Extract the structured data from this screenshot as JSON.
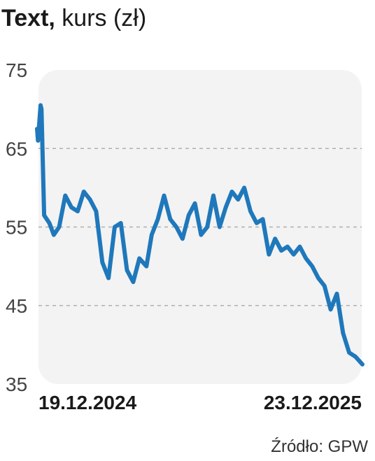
{
  "title": {
    "bold": "Text",
    "light": " kurs (zł)",
    "comma": ","
  },
  "source": "Źródło: GPW",
  "colors": {
    "line": "#1f78bb",
    "panel": "#f3f3f3",
    "grid": "#b0b0b0",
    "text": "#1a1a1a"
  },
  "chart_data": {
    "type": "line",
    "title": "Text, kurs (zł)",
    "ylabel": "kurs (zł)",
    "ylim": [
      35,
      75
    ],
    "yticks": [
      35,
      45,
      55,
      65,
      75
    ],
    "xtick_labels": [
      "19.12.2024",
      "23.12.2025"
    ],
    "grid": "horizontal dashed",
    "series": [
      {
        "x": [
          "2024-12-19",
          "2024-12-20",
          "2024-12-23",
          "2024-12-24",
          "2024-12-27",
          "2025-01-02",
          "2025-01-07",
          "2025-01-13",
          "2025-01-20",
          "2025-01-27",
          "2025-02-03",
          "2025-02-10",
          "2025-02-17",
          "2025-02-24",
          "2025-03-03",
          "2025-03-10",
          "2025-03-17",
          "2025-03-24",
          "2025-03-31",
          "2025-04-07",
          "2025-04-14",
          "2025-04-22",
          "2025-04-28",
          "2025-05-05",
          "2025-05-12",
          "2025-05-19",
          "2025-05-26",
          "2025-06-02",
          "2025-06-09",
          "2025-06-16",
          "2025-06-23",
          "2025-06-30",
          "2025-07-07",
          "2025-07-14",
          "2025-07-21",
          "2025-07-28",
          "2025-08-04",
          "2025-08-11",
          "2025-08-18",
          "2025-08-25",
          "2025-09-01",
          "2025-09-08",
          "2025-09-15",
          "2025-09-22",
          "2025-09-29",
          "2025-10-06",
          "2025-10-13",
          "2025-10-20",
          "2025-10-27",
          "2025-11-03",
          "2025-11-10",
          "2025-11-17",
          "2025-11-24",
          "2025-12-01",
          "2025-12-08",
          "2025-12-15",
          "2025-12-23"
        ],
        "values": [
          67.5,
          66.0,
          70.5,
          70.0,
          56.5,
          55.5,
          54.0,
          55.0,
          59.0,
          57.5,
          57.0,
          59.5,
          58.5,
          57.0,
          50.5,
          48.5,
          55.0,
          55.5,
          49.5,
          48.0,
          51.0,
          50.0,
          54.0,
          56.0,
          59.0,
          56.0,
          55.0,
          53.5,
          56.5,
          58.0,
          54.0,
          55.0,
          59.0,
          55.0,
          57.5,
          59.5,
          58.5,
          60.0,
          57.0,
          55.5,
          56.0,
          51.5,
          53.5,
          52.0,
          52.5,
          51.5,
          52.5,
          51.0,
          50.0,
          48.5,
          47.5,
          44.5,
          46.5,
          41.5,
          39.0,
          38.5,
          37.5
        ]
      }
    ]
  }
}
